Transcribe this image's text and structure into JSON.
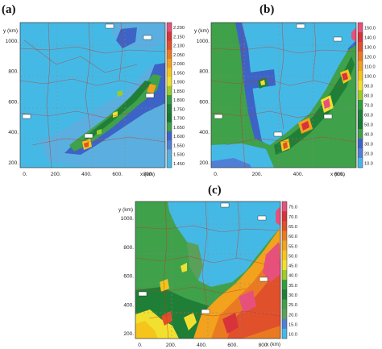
{
  "chart_data": [
    {
      "type": "heatmap",
      "panel_label": "(a)",
      "y_axis_label": "y (km)",
      "x_axis_label": "x (km)",
      "x_ticks": [
        "0.",
        "200.",
        "400.",
        "600.",
        "800."
      ],
      "y_ticks": [
        "200.",
        "400.",
        "600.",
        "800.",
        "1000."
      ],
      "colorbar": [
        "2.200",
        "2.150",
        "2.100",
        "2.050",
        "2.000",
        "1.950",
        "1.900",
        "1.850",
        "1.800",
        "1.750",
        "1.700",
        "1.650",
        "1.600",
        "1.550",
        "1.500",
        "1.450"
      ],
      "colors": [
        "#e8507c",
        "#d8323a",
        "#e0502a",
        "#ea7a22",
        "#f2a21c",
        "#f5c51c",
        "#f2e030",
        "#9ccc2a",
        "#2f9f3f",
        "#1f7f37",
        "#147a32",
        "#3fa14a",
        "#3d63c6",
        "#4f7fd6",
        "#5aafe0",
        "#45b9e6"
      ]
    },
    {
      "type": "heatmap",
      "panel_label": "(b)",
      "y_axis_label": "y (km)",
      "x_axis_label": "x (km)",
      "x_ticks": [
        "0.",
        "200.",
        "400.",
        "600."
      ],
      "y_ticks": [
        "200.",
        "400.",
        "600.",
        "800.",
        "1000."
      ],
      "colorbar": [
        "150.0",
        "140.0",
        "130.0",
        "120.0",
        "110.0",
        "100.0",
        "90.0",
        "80.0",
        "70.0",
        "60.0",
        "50.0",
        "40.0",
        "30.0",
        "20.0",
        "10.0"
      ],
      "colors": [
        "#e8507c",
        "#d8323a",
        "#e0502a",
        "#ea7a22",
        "#f2a21c",
        "#f5c51c",
        "#f2e030",
        "#9ccc2a",
        "#2f9f3f",
        "#1f7f37",
        "#147a32",
        "#3fa14a",
        "#3d63c6",
        "#4f7fd6",
        "#45b9e6"
      ]
    },
    {
      "type": "heatmap",
      "panel_label": "(c)",
      "y_axis_label": "y (km)",
      "x_axis_label": "x (km)",
      "x_ticks": [
        "0.",
        "200.",
        "400.",
        "600.",
        "800."
      ],
      "y_ticks": [
        "200.",
        "400.",
        "600.",
        "800.",
        "1000."
      ],
      "colorbar": [
        "75.0",
        "70.0",
        "65.0",
        "60.0",
        "55.0",
        "50.0",
        "45.0",
        "40.0",
        "35.0",
        "30.0",
        "25.0",
        "20.0",
        "15.0",
        "10.0"
      ],
      "colors": [
        "#e8507c",
        "#d8323a",
        "#e0502a",
        "#ea7a22",
        "#f2a21c",
        "#f5c51c",
        "#f2e030",
        "#9ccc2a",
        "#2f9f3f",
        "#1f7f37",
        "#3fa14a",
        "#5aa05a",
        "#4f7fd6",
        "#45b9e6"
      ]
    }
  ]
}
